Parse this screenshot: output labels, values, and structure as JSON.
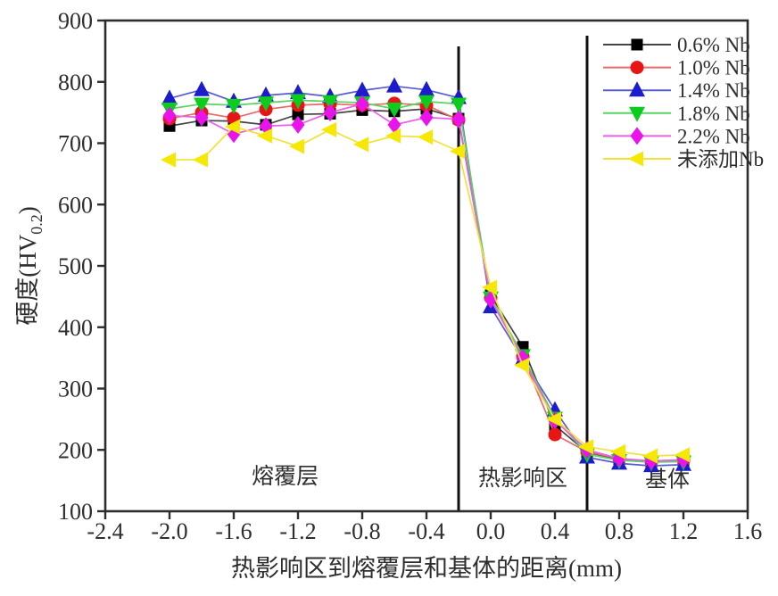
{
  "chart_data": {
    "type": "line",
    "title": "",
    "xlabel": "热影响区到熔覆层和基体的距离(mm)",
    "ylabel": "硬度(HV0.2)",
    "ylabel_prefix": "硬度(HV",
    "ylabel_sub": "0.2",
    "ylabel_suffix": ")",
    "xlim": [
      -2.4,
      1.6
    ],
    "ylim": [
      100,
      900
    ],
    "x_ticks": [
      -2.4,
      -2.0,
      -1.6,
      -1.2,
      -0.8,
      -0.4,
      0.0,
      0.4,
      0.8,
      1.2,
      1.6
    ],
    "x_tick_labels": [
      "-2.4",
      "-2.0",
      "-1.6",
      "-1.2",
      "-0.8",
      "-0.4",
      "0.0",
      "0.4",
      "0.8",
      "1.2",
      "1.6"
    ],
    "y_ticks": [
      100,
      200,
      300,
      400,
      500,
      600,
      700,
      800,
      900
    ],
    "y_tick_labels": [
      "100",
      "200",
      "300",
      "400",
      "500",
      "600",
      "700",
      "800",
      "900"
    ],
    "grid": false,
    "legend_position": "top-right",
    "x": [
      -2.0,
      -1.8,
      -1.6,
      -1.4,
      -1.2,
      -1.0,
      -0.8,
      -0.6,
      -0.4,
      -0.2,
      0.0,
      0.2,
      0.4,
      0.6,
      0.8,
      1.0,
      1.2
    ],
    "series": [
      {
        "name": "0.6% Nb",
        "marker": "square",
        "color": "#000000",
        "line_color": "#444444",
        "values": [
          728,
          737,
          736,
          730,
          747,
          748,
          754,
          752,
          756,
          740,
          452,
          368,
          240,
          196,
          185,
          180,
          182
        ]
      },
      {
        "name": "1.0% Nb",
        "marker": "circle",
        "color": "#e81515",
        "line_color": "#e86a6a",
        "values": [
          740,
          750,
          741,
          755,
          762,
          764,
          762,
          765,
          762,
          738,
          448,
          352,
          225,
          197,
          186,
          181,
          183
        ]
      },
      {
        "name": "1.4% Nb",
        "marker": "triangle-up",
        "color": "#1c1ccd",
        "line_color": "#5a5ad0",
        "values": [
          773,
          787,
          768,
          778,
          782,
          776,
          786,
          793,
          787,
          774,
          433,
          348,
          265,
          188,
          178,
          174,
          176
        ]
      },
      {
        "name": "1.8% Nb",
        "marker": "triangle-down",
        "color": "#0ccc1e",
        "line_color": "#58d463",
        "values": [
          756,
          764,
          762,
          766,
          770,
          768,
          766,
          756,
          768,
          764,
          448,
          354,
          252,
          193,
          183,
          180,
          181
        ]
      },
      {
        "name": "2.2% Nb",
        "marker": "diamond",
        "color": "#ea14ea",
        "line_color": "#ea60ea",
        "values": [
          745,
          742,
          715,
          728,
          730,
          750,
          764,
          730,
          742,
          739,
          445,
          350,
          248,
          200,
          186,
          182,
          184
        ]
      },
      {
        "name": "未添加Nb",
        "marker": "triangle-left",
        "color": "#f6e800",
        "line_color": "#f0e23a",
        "values": [
          673,
          673,
          727,
          712,
          695,
          722,
          698,
          712,
          710,
          687,
          465,
          338,
          250,
          205,
          197,
          190,
          192
        ]
      }
    ],
    "region_lines_x": [
      -0.2,
      0.6
    ],
    "region_labels": [
      {
        "text": "熔覆层",
        "x": -1.28,
        "y": 145
      },
      {
        "text": "热影响区",
        "x": 0.2,
        "y": 142
      },
      {
        "text": "基体",
        "x": 1.1,
        "y": 140
      }
    ]
  },
  "colors": {
    "axis": "#2d2d2d",
    "region_line": "#111111",
    "tick_text": "#2e2e2e",
    "region_text": "#3c3c3c"
  }
}
